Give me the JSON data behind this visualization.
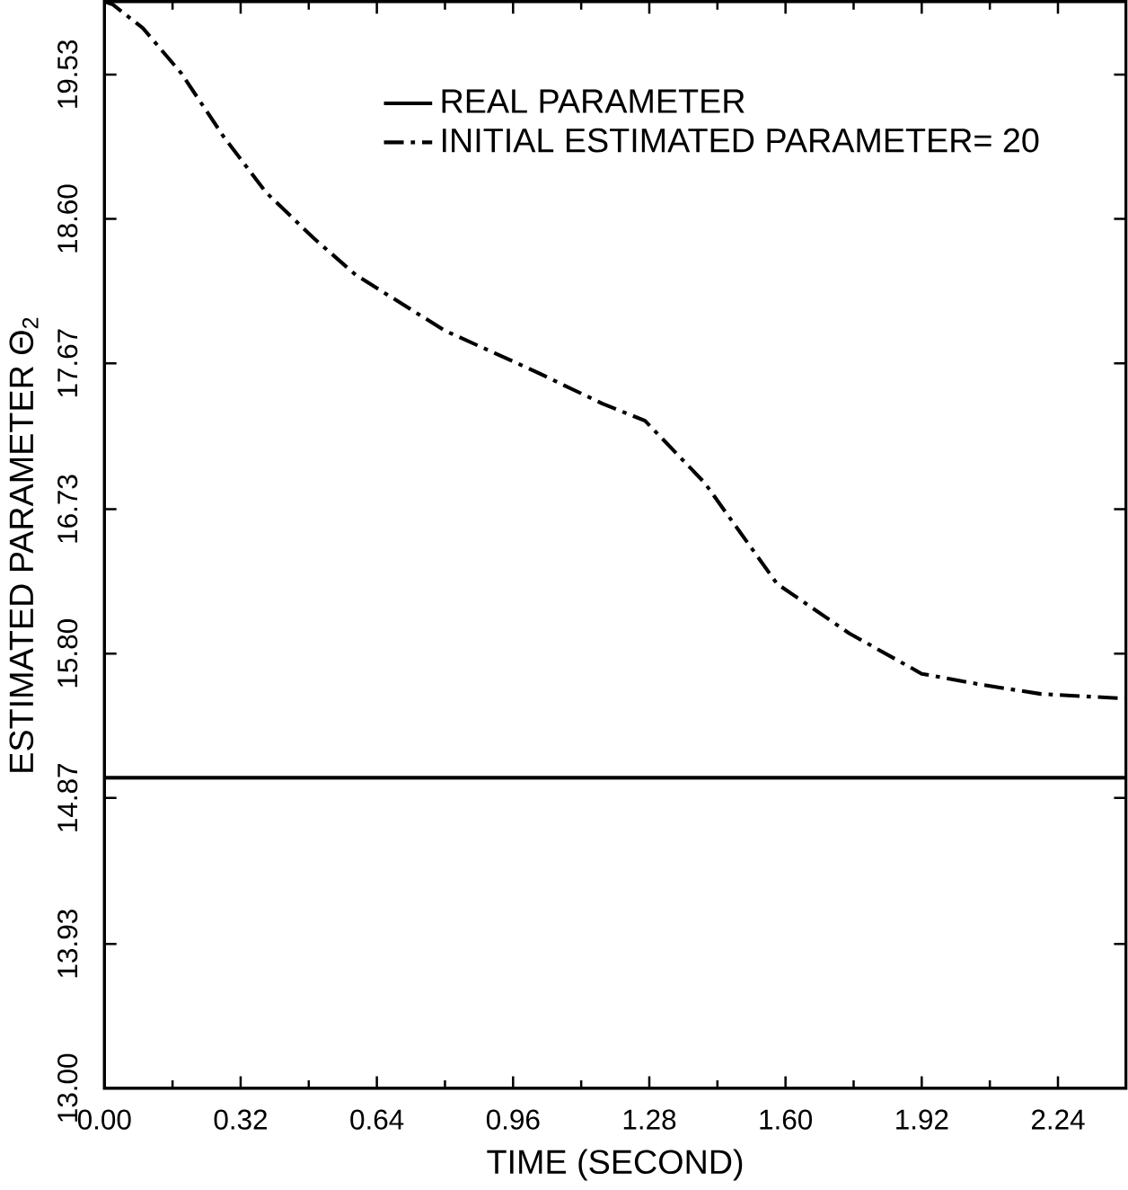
{
  "chart_data": {
    "type": "line",
    "xlabel": "TIME (SECOND)",
    "ylabel": "ESTIMATED PARAMETER Θ$_{2}$",
    "xlim": [
      0,
      2.4
    ],
    "ylim": [
      13,
      20
    ],
    "xticks": [
      {
        "value": 0,
        "label": "0.00"
      },
      {
        "value": 0.32,
        "label": "0.32"
      },
      {
        "value": 0.64,
        "label": "0.64"
      },
      {
        "value": 0.96,
        "label": "0.96"
      },
      {
        "value": 1.28,
        "label": "1.28"
      },
      {
        "value": 1.6,
        "label": "1.60"
      },
      {
        "value": 1.92,
        "label": "1.92"
      },
      {
        "value": 2.24,
        "label": "2.24"
      }
    ],
    "yticks": [
      {
        "value": 13,
        "label": "13.00"
      },
      {
        "value": 13.93,
        "label": "13.93"
      },
      {
        "value": 14.87,
        "label": "14.87"
      },
      {
        "value": 15.8,
        "label": "15.80"
      },
      {
        "value": 16.73,
        "label": "16.73"
      },
      {
        "value": 17.67,
        "label": "17.67"
      },
      {
        "value": 18.6,
        "label": "18.60"
      },
      {
        "value": 19.53,
        "label": "19.53"
      }
    ],
    "legend": "top right",
    "grid": false,
    "series": [
      {
        "name": "REAL PARAMETER",
        "color": "#000000",
        "line_style": "solid",
        "x": [
          0,
          2.4
        ],
        "values": [
          15.0,
          15.0
        ]
      },
      {
        "name": "INITIAL ESTIMATED PARAMETER= 20",
        "color": "#000000",
        "line_style": "dashdot",
        "x": [
          0,
          0.02,
          0.09,
          0.18,
          0.28,
          0.38,
          0.49,
          0.59,
          0.8,
          1.01,
          1.17,
          1.27,
          1.41,
          1.58,
          1.75,
          1.92,
          2.06,
          2.2,
          2.4
        ],
        "values": [
          20,
          19.98,
          19.83,
          19.54,
          19.13,
          18.77,
          18.48,
          18.24,
          17.88,
          17.62,
          17.41,
          17.3,
          16.9,
          16.25,
          15.93,
          15.67,
          15.6,
          15.54,
          15.51
        ]
      }
    ]
  }
}
